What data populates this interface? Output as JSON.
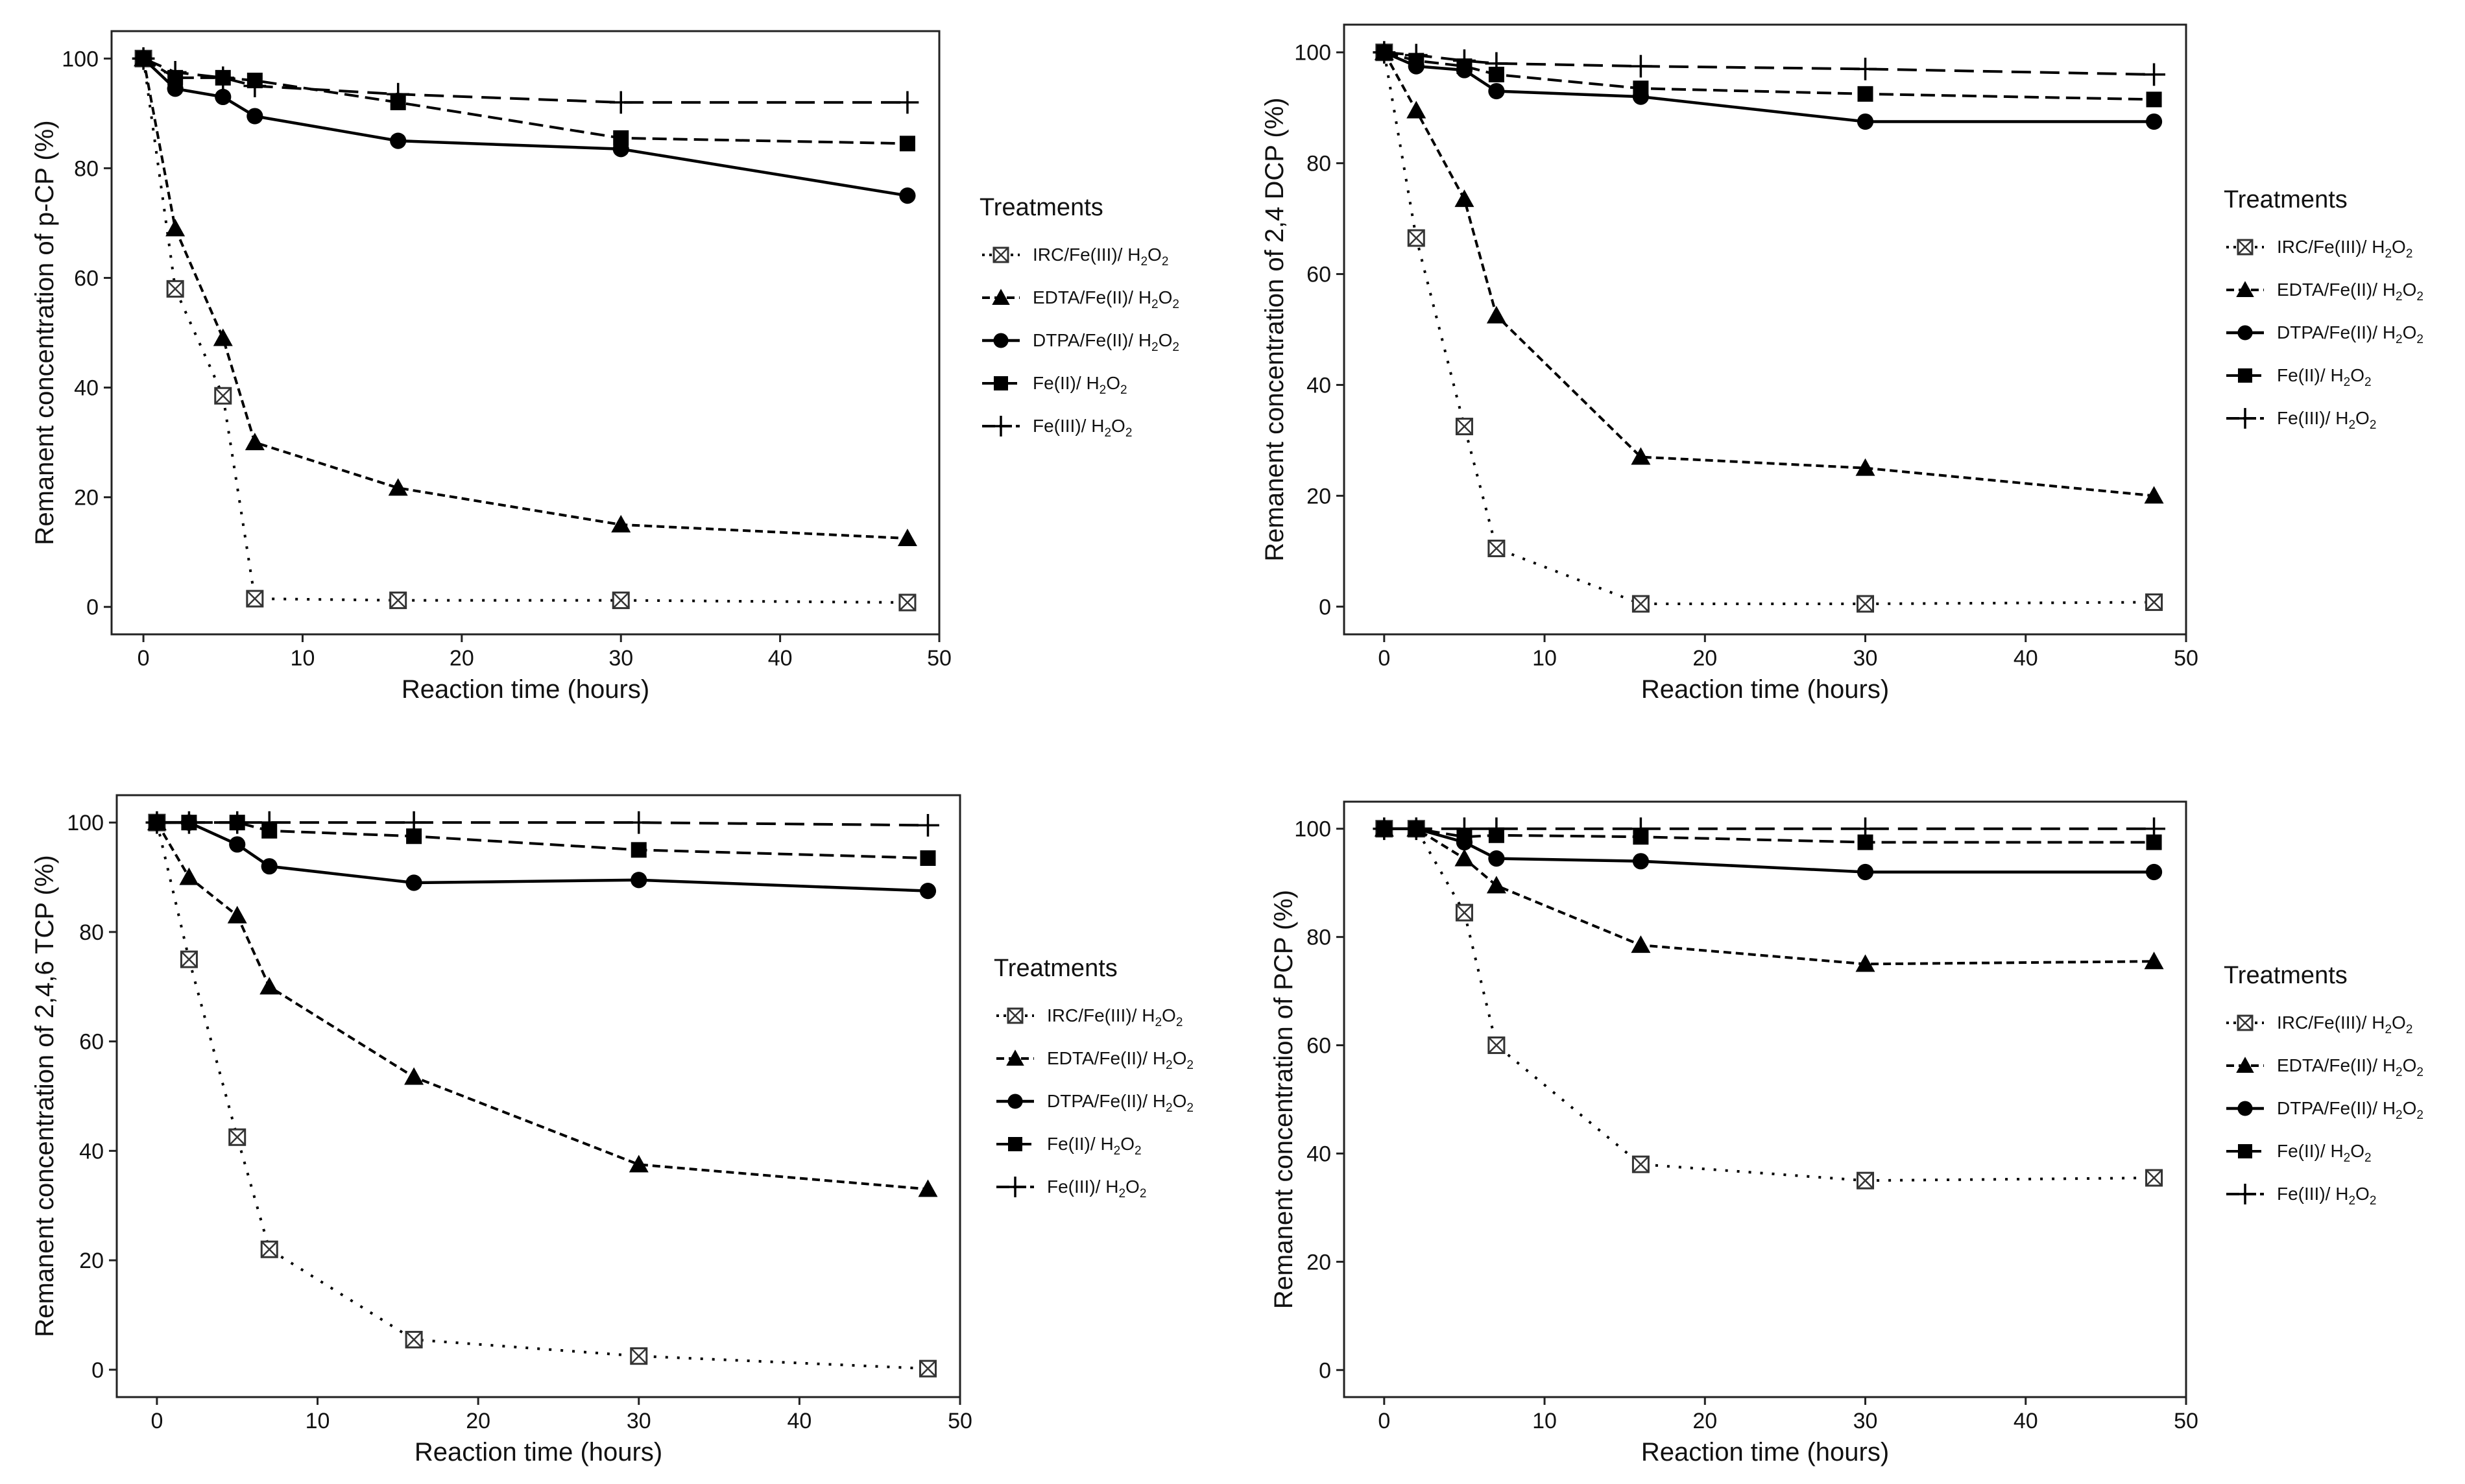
{
  "chart_data": [
    {
      "type": "line",
      "ylabel": "Remanent concentration of p-CP (%)",
      "xlabel": "Reaction time (hours)",
      "x": [
        0,
        2,
        5,
        7,
        16,
        30,
        48
      ],
      "xlim": [
        -2,
        50
      ],
      "ylim": [
        -5,
        105
      ],
      "xticks": [
        0,
        10,
        20,
        30,
        40,
        50
      ],
      "yticks": [
        0,
        20,
        40,
        60,
        80,
        100
      ],
      "legend_title": "Treatments",
      "series": [
        {
          "name": "IRC/Fe(III)/ H2O2",
          "label_main": "IRC/Fe(III)/ H",
          "label_sub": "2",
          "label_mid": "O",
          "label_sub2": "2",
          "values": [
            100,
            58,
            38.5,
            1.5,
            1.2,
            1.2,
            0.8
          ]
        },
        {
          "name": "EDTA/Fe(II)/ H2O2",
          "label_main": "EDTA/Fe(II)/ H",
          "label_sub": "2",
          "label_mid": "O",
          "label_sub2": "2",
          "values": [
            100,
            69,
            49,
            30,
            21.7,
            15,
            12.5
          ]
        },
        {
          "name": "DTPA/Fe(II)/ H2O2",
          "label_main": "DTPA/Fe(II)/ H",
          "label_sub": "2",
          "label_mid": "O",
          "label_sub2": "2",
          "values": [
            100,
            94.5,
            93,
            89.5,
            85,
            83.5,
            75
          ]
        },
        {
          "name": "Fe(II)/ H2O2",
          "label_main": "Fe(II)/ H",
          "label_sub": "2",
          "label_mid": "O",
          "label_sub2": "2",
          "values": [
            100,
            96.5,
            96.5,
            96,
            92,
            85.5,
            84.5
          ]
        },
        {
          "name": "Fe(III)/ H2O2",
          "label_main": "Fe(III)/ H",
          "label_sub": "2",
          "label_mid": "O",
          "label_sub2": "2",
          "values": [
            100,
            97.5,
            96.5,
            95,
            93.5,
            92,
            92
          ]
        }
      ]
    },
    {
      "type": "line",
      "ylabel": "Remanent concentration of 2,4 DCP (%)",
      "xlabel": "Reaction time (hours)",
      "x": [
        0,
        2,
        5,
        7,
        16,
        30,
        48
      ],
      "xlim": [
        -2.5,
        50
      ],
      "ylim": [
        -5,
        105
      ],
      "xticks": [
        0,
        10,
        20,
        30,
        40,
        50
      ],
      "yticks": [
        0,
        20,
        40,
        60,
        80,
        100
      ],
      "legend_title": "Treatments",
      "series": [
        {
          "name": "IRC/Fe(III)/ H2O2",
          "label_main": "IRC/Fe(III)/ H",
          "label_sub": "2",
          "label_mid": "O",
          "label_sub2": "2",
          "values": [
            100,
            66.5,
            32.5,
            10.5,
            0.5,
            0.5,
            0.8
          ]
        },
        {
          "name": "EDTA/Fe(II)/ H2O2",
          "label_main": "EDTA/Fe(II)/ H",
          "label_sub": "2",
          "label_mid": "O",
          "label_sub2": "2",
          "values": [
            100,
            89.5,
            73.5,
            52.5,
            27,
            25,
            20
          ]
        },
        {
          "name": "DTPA/Fe(II)/ H2O2",
          "label_main": "DTPA/Fe(II)/ H",
          "label_sub": "2",
          "label_mid": "O",
          "label_sub2": "2",
          "values": [
            100,
            97.5,
            96.8,
            93,
            92,
            87.5,
            87.5
          ]
        },
        {
          "name": "Fe(II)/ H2O2",
          "label_main": "Fe(II)/ H",
          "label_sub": "2",
          "label_mid": "O",
          "label_sub2": "2",
          "values": [
            100,
            98.5,
            97.5,
            96,
            93.5,
            92.5,
            91.5
          ]
        },
        {
          "name": "Fe(III)/ H2O2",
          "label_main": "Fe(III)/ H",
          "label_sub": "2",
          "label_mid": "O",
          "label_sub2": "2",
          "values": [
            100,
            99.5,
            98.5,
            98,
            97.5,
            97,
            96
          ]
        }
      ]
    },
    {
      "type": "line",
      "ylabel": "Remanent concentration of 2,4,6 TCP (%)",
      "xlabel": "Reaction time (hours)",
      "x": [
        0,
        2,
        5,
        7,
        16,
        30,
        48
      ],
      "xlim": [
        -2.5,
        50
      ],
      "ylim": [
        -5,
        105
      ],
      "xticks": [
        0,
        10,
        20,
        30,
        40,
        50
      ],
      "yticks": [
        0,
        20,
        40,
        60,
        80,
        100
      ],
      "legend_title": "Treatments",
      "series": [
        {
          "name": "IRC/Fe(III)/ H2O2",
          "label_main": "IRC/Fe(III)/ H",
          "label_sub": "2",
          "label_mid": "O",
          "label_sub2": "2",
          "values": [
            100,
            75,
            42.5,
            22,
            5.5,
            2.5,
            0.2
          ]
        },
        {
          "name": "EDTA/Fe(II)/ H2O2",
          "label_main": "EDTA/Fe(II)/ H",
          "label_sub": "2",
          "label_mid": "O",
          "label_sub2": "2",
          "values": [
            100,
            90,
            83,
            70,
            53.5,
            37.5,
            33
          ]
        },
        {
          "name": "DTPA/Fe(II)/ H2O2",
          "label_main": "DTPA/Fe(II)/ H",
          "label_sub": "2",
          "label_mid": "O",
          "label_sub2": "2",
          "values": [
            100,
            100,
            96,
            92,
            89,
            89.5,
            87.5
          ]
        },
        {
          "name": "Fe(II)/ H2O2",
          "label_main": "Fe(II)/ H",
          "label_sub": "2",
          "label_mid": "O",
          "label_sub2": "2",
          "values": [
            100,
            100,
            100,
            98.5,
            97.5,
            95,
            93.5
          ]
        },
        {
          "name": "Fe(III)/ H2O2",
          "label_main": "Fe(III)/ H",
          "label_sub": "2",
          "label_mid": "O",
          "label_sub2": "2",
          "values": [
            100,
            100,
            100,
            100,
            100,
            100,
            99.5
          ]
        }
      ]
    },
    {
      "type": "line",
      "ylabel": "Remanent concentration of PCP (%)",
      "xlabel": "Reaction time (hours)",
      "x": [
        0,
        2,
        5,
        7,
        16,
        30,
        48
      ],
      "xlim": [
        -2.5,
        50
      ],
      "ylim": [
        -5,
        105
      ],
      "xticks": [
        0,
        10,
        20,
        30,
        40,
        50
      ],
      "yticks": [
        0,
        20,
        40,
        60,
        80,
        100
      ],
      "legend_title": "Treatments",
      "series": [
        {
          "name": "IRC/Fe(III)/ H2O2",
          "label_main": "IRC/Fe(III)/ H",
          "label_sub": "2",
          "label_mid": "O",
          "label_sub2": "2",
          "values": [
            100,
            100,
            84.5,
            60,
            38,
            35,
            35.5
          ]
        },
        {
          "name": "EDTA/Fe(II)/ H2O2",
          "label_main": "EDTA/Fe(II)/ H",
          "label_sub": "2",
          "label_mid": "O",
          "label_sub2": "2",
          "values": [
            100,
            100,
            94.5,
            89.5,
            78.5,
            75,
            75.5
          ]
        },
        {
          "name": "DTPA/Fe(II)/ H2O2",
          "label_main": "DTPA/Fe(II)/ H",
          "label_sub": "2",
          "label_mid": "O",
          "label_sub2": "2",
          "values": [
            100,
            100,
            97.5,
            94.5,
            94,
            92,
            92
          ]
        },
        {
          "name": "Fe(II)/ H2O2",
          "label_main": "Fe(II)/ H",
          "label_sub": "2",
          "label_mid": "O",
          "label_sub2": "2",
          "values": [
            100,
            100,
            98.5,
            98.8,
            98.5,
            97.5,
            97.5
          ]
        },
        {
          "name": "Fe(III)/ H2O2",
          "label_main": "Fe(III)/ H",
          "label_sub": "2",
          "label_mid": "O",
          "label_sub2": "2",
          "values": [
            100,
            100,
            100,
            100,
            100,
            100,
            100
          ]
        }
      ]
    }
  ]
}
